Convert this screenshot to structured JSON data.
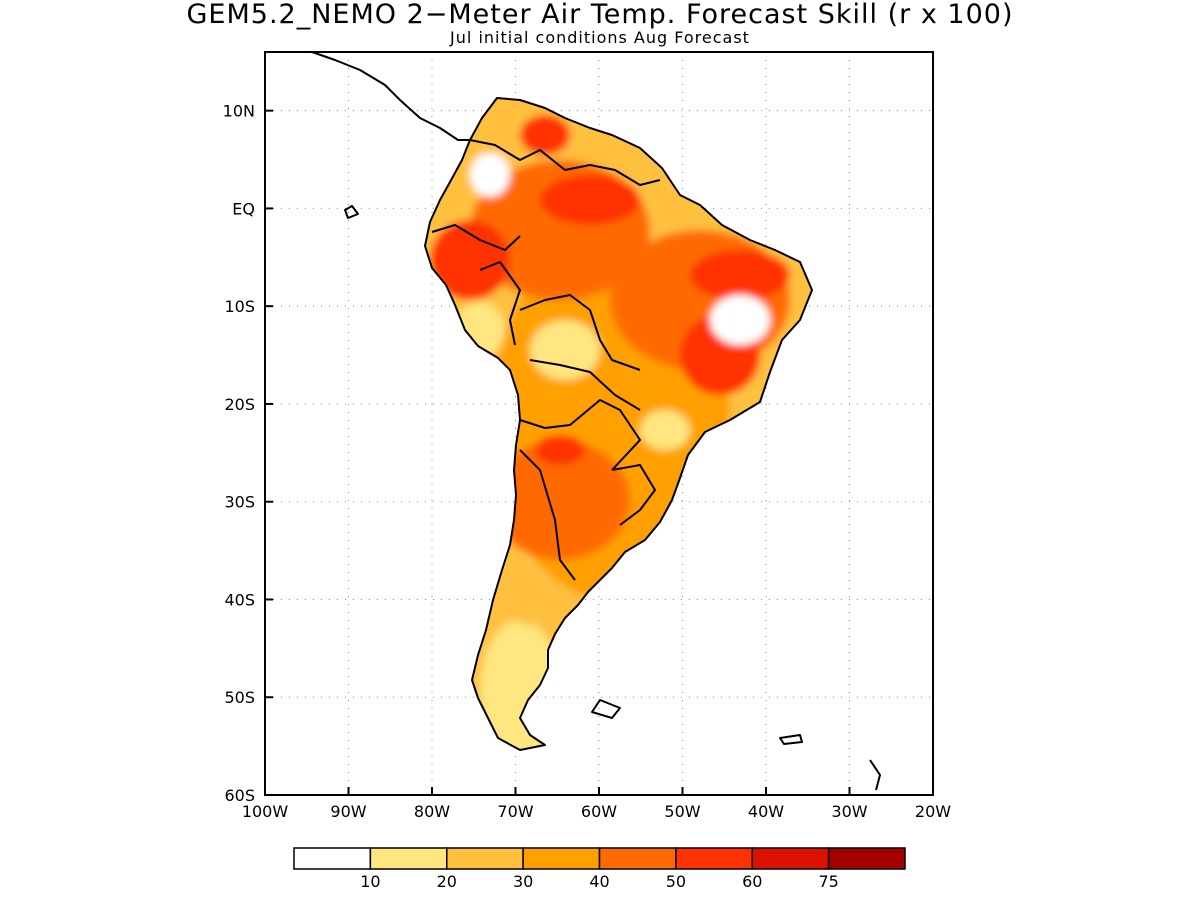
{
  "title": "GEM5.2_NEMO 2−Meter Air Temp. Forecast Skill (r x 100)",
  "subtitle": "Jul initial conditions  Aug Forecast",
  "map": {
    "region": "South America",
    "lon_range": [
      -100,
      -20
    ],
    "lat_range": [
      -60,
      16
    ],
    "x_ticks": [
      "100W",
      "90W",
      "80W",
      "70W",
      "60W",
      "50W",
      "40W",
      "30W",
      "20W"
    ],
    "y_ticks": [
      "10N",
      "EQ",
      "10S",
      "20S",
      "30S",
      "40S",
      "50S",
      "60S"
    ],
    "gridlines": true
  },
  "colorbar": {
    "colors": [
      "#ffffff",
      "#ffe680",
      "#ffc040",
      "#ffa000",
      "#ff6a00",
      "#ff3300",
      "#dd1100",
      "#a50000"
    ],
    "labels": [
      "10",
      "20",
      "30",
      "40",
      "50",
      "60",
      "75"
    ]
  }
}
